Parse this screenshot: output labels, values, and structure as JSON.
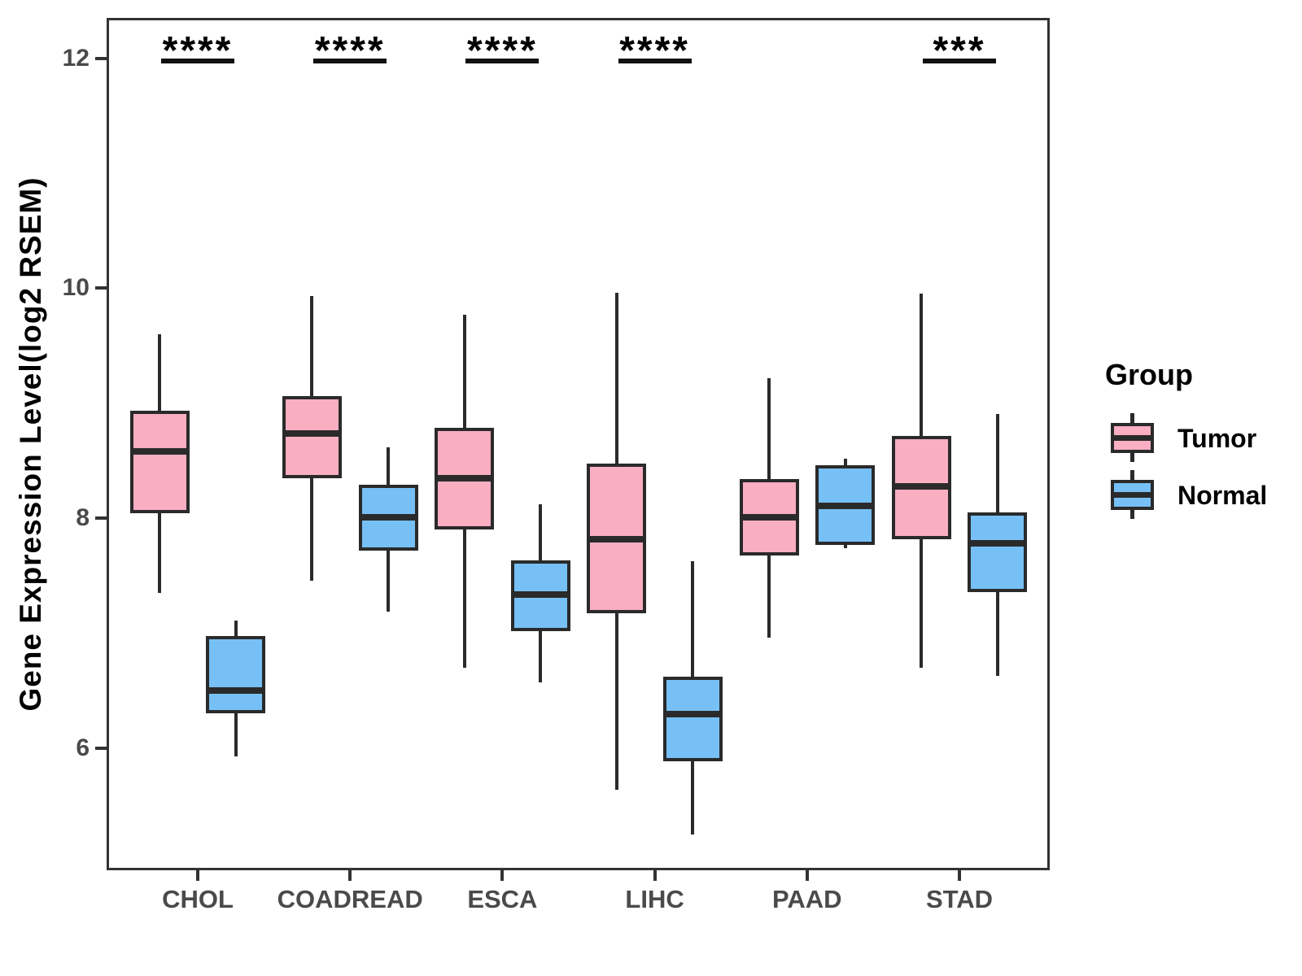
{
  "chart_data": {
    "type": "grouped_boxplot",
    "title": "",
    "xlabel": "",
    "ylabel": "Gene Expression Level(log2 RSEM)",
    "ylim": [
      4.94,
      12.35
    ],
    "yticks": [
      "6",
      "8",
      "10",
      "12"
    ],
    "ytick_values": [
      6,
      8,
      10,
      12
    ],
    "grid": false,
    "categories": [
      "CHOL",
      "COADREAD",
      "ESCA",
      "LIHC",
      "PAAD",
      "STAD"
    ],
    "colors": {
      "tumor_fill": "#F9AEC2",
      "normal_fill": "#76C0F6",
      "line": "#2a2a2a",
      "tick_label": "#4a4a4a"
    },
    "legend": {
      "title": "Group",
      "position": "right",
      "items": [
        {
          "label": "Tumor",
          "color": "#F9AEC2"
        },
        {
          "label": "Normal",
          "color": "#76C0F6"
        }
      ]
    },
    "significance": [
      {
        "category": "CHOL",
        "label": "****"
      },
      {
        "category": "COADREAD",
        "label": "****"
      },
      {
        "category": "ESCA",
        "label": "****"
      },
      {
        "category": "LIHC",
        "label": "****"
      },
      {
        "category": "STAD",
        "label": "***"
      }
    ],
    "series": [
      {
        "name": "Tumor",
        "color": "#F9AEC2",
        "boxes": [
          {
            "category": "CHOL",
            "min": 7.35,
            "q1": 8.06,
            "median": 8.58,
            "q3": 8.92,
            "max": 9.6
          },
          {
            "category": "COADREAD",
            "min": 7.46,
            "q1": 8.36,
            "median": 8.74,
            "q3": 9.05,
            "max": 9.93
          },
          {
            "category": "ESCA",
            "min": 6.7,
            "q1": 7.92,
            "median": 8.35,
            "q3": 8.77,
            "max": 9.77
          },
          {
            "category": "LIHC",
            "min": 5.64,
            "q1": 7.19,
            "median": 7.82,
            "q3": 8.46,
            "max": 9.96
          },
          {
            "category": "PAAD",
            "min": 6.96,
            "q1": 7.69,
            "median": 8.01,
            "q3": 8.33,
            "max": 9.22
          },
          {
            "category": "STAD",
            "min": 6.7,
            "q1": 7.83,
            "median": 8.28,
            "q3": 8.7,
            "max": 9.95
          }
        ]
      },
      {
        "name": "Normal",
        "color": "#76C0F6",
        "boxes": [
          {
            "category": "CHOL",
            "min": 5.93,
            "q1": 6.32,
            "median": 6.5,
            "q3": 6.96,
            "max": 7.11
          },
          {
            "category": "COADREAD",
            "min": 7.19,
            "q1": 7.73,
            "median": 8.01,
            "q3": 8.28,
            "max": 8.62
          },
          {
            "category": "ESCA",
            "min": 6.57,
            "q1": 7.03,
            "median": 7.34,
            "q3": 7.62,
            "max": 8.12
          },
          {
            "category": "LIHC",
            "min": 5.25,
            "q1": 5.9,
            "median": 6.3,
            "q3": 6.61,
            "max": 7.63
          },
          {
            "category": "PAAD",
            "min": 7.74,
            "q1": 7.78,
            "median": 8.11,
            "q3": 8.45,
            "max": 8.52
          },
          {
            "category": "STAD",
            "min": 6.63,
            "q1": 7.37,
            "median": 7.78,
            "q3": 8.04,
            "max": 8.91
          }
        ]
      }
    ]
  }
}
